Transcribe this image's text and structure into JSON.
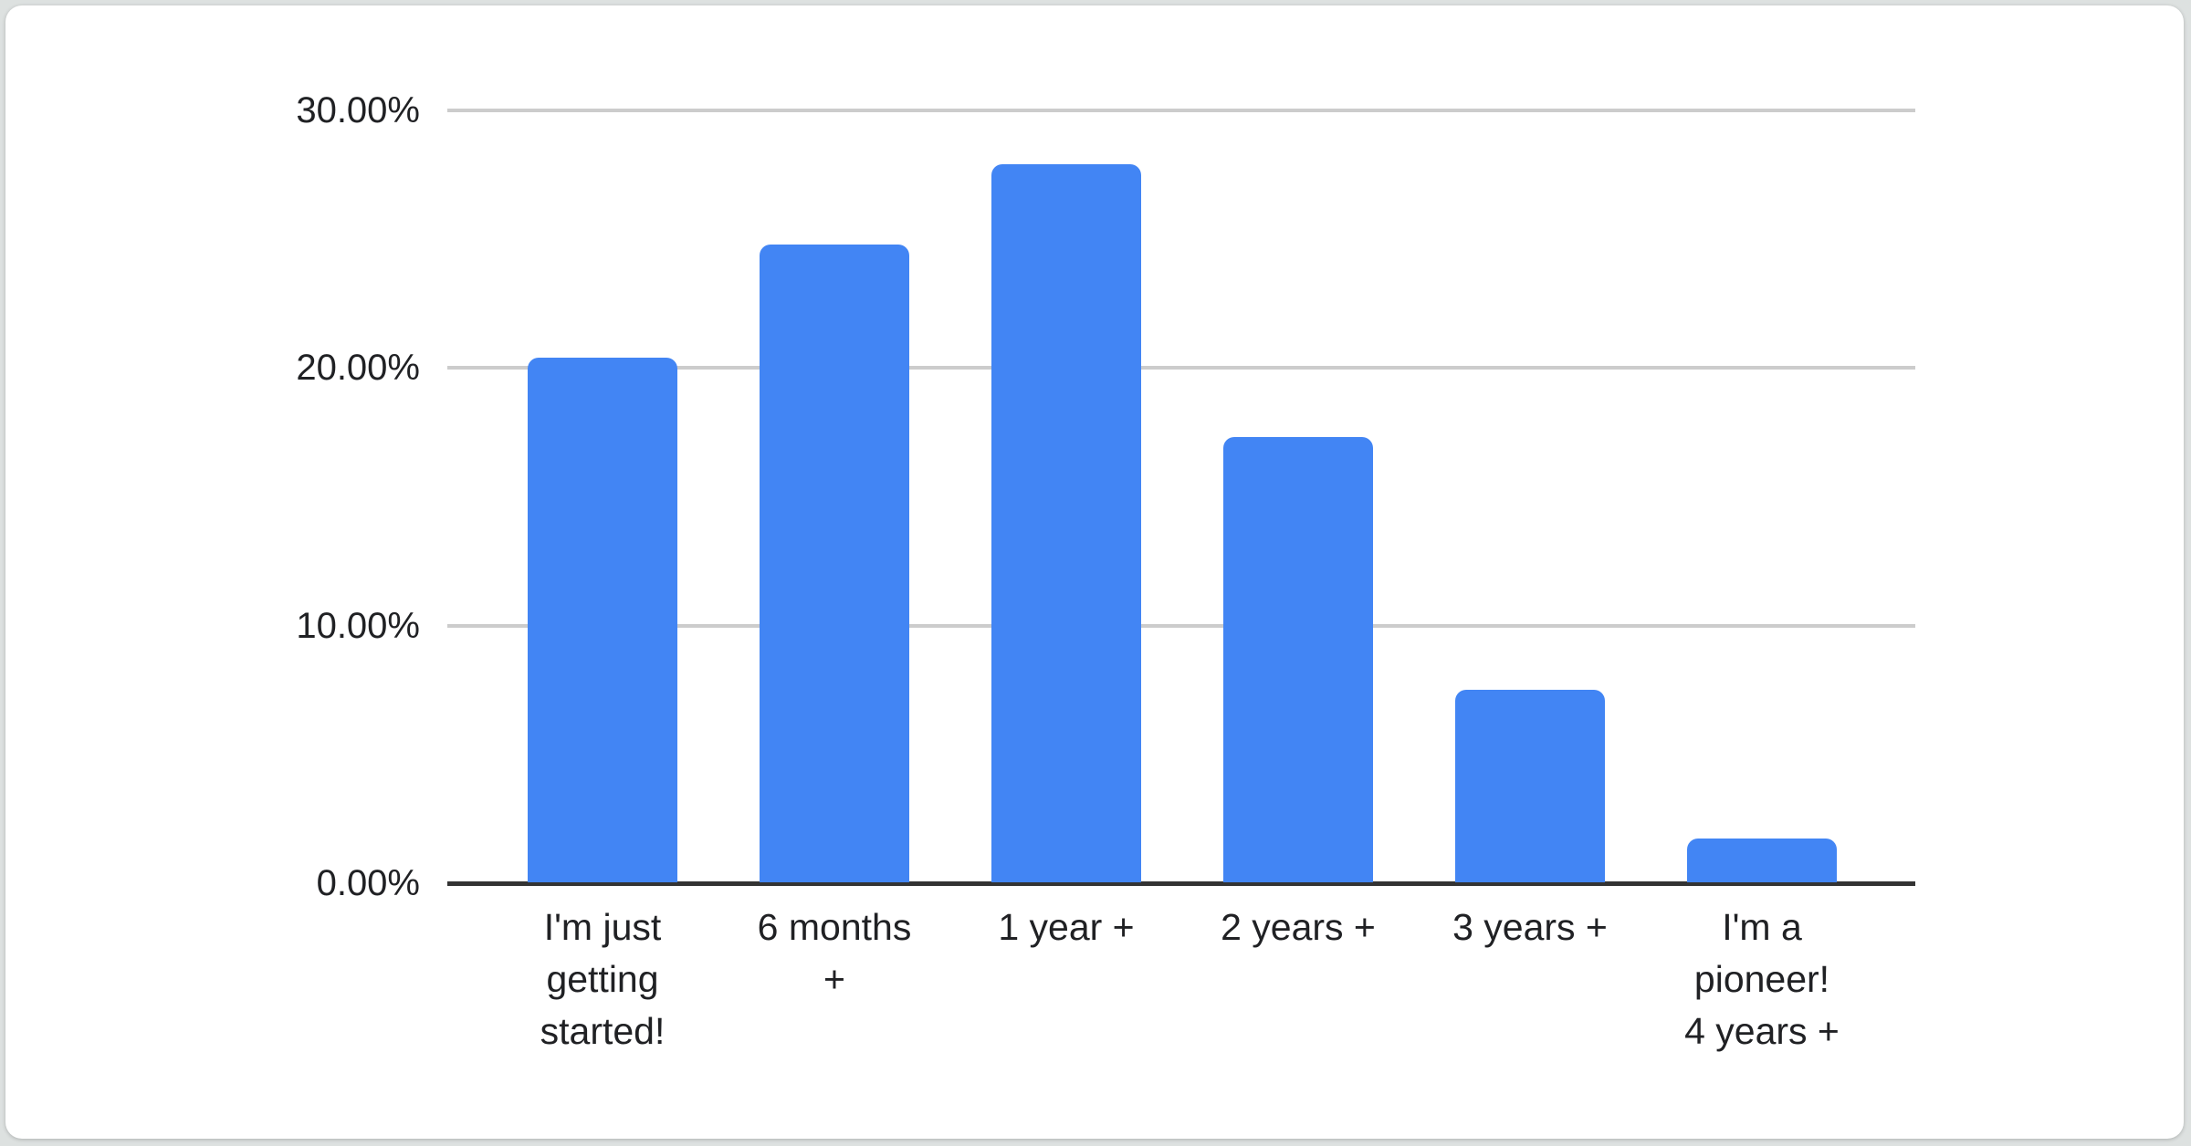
{
  "chart_data": {
    "type": "bar",
    "title": "",
    "xlabel": "",
    "ylabel": "",
    "categories": [
      "I'm just getting started!",
      "6 months +",
      "1 year +",
      "2 years +",
      "3 years +",
      "I'm a pioneer! 4 years +"
    ],
    "labels_display": [
      "I'm just\ngetting\nstarted!",
      "6 months\n+",
      "1 year +",
      "2 years +",
      "3 years +",
      "I'm a\npioneer!\n4 years +"
    ],
    "values": [
      20.4,
      24.8,
      27.9,
      17.3,
      7.5,
      1.7
    ],
    "value_unit": "percent",
    "ytick_labels": [
      "30.00%",
      "20.00%",
      "10.00%",
      "0.00%"
    ],
    "ylim": [
      0,
      30
    ],
    "grid": true,
    "legend_position": "none",
    "bar_color": "#4285f4",
    "gridline_color": "#cccccc",
    "axis_line_color": "#333333",
    "text_color": "#202124",
    "card_background": "#ffffff",
    "page_background": "#dde1e0"
  }
}
